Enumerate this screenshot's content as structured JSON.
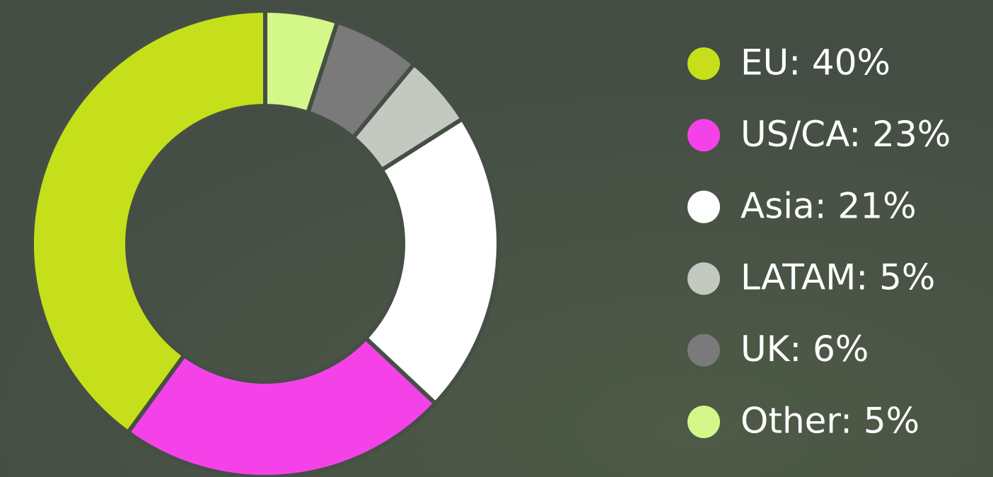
{
  "chart_data": {
    "type": "donut",
    "categories": [
      "EU: 40%",
      "US/CA: 23%",
      "Asia: 21%",
      "LATAM: 5%",
      "UK: 6%",
      "Other: 5%"
    ],
    "values": [
      40,
      23,
      21,
      5,
      6,
      5
    ],
    "colors": [
      "#c5e01a",
      "#f542e8",
      "#ffffff",
      "#c3c8c0",
      "#7a7a7a",
      "#d4f78a"
    ],
    "legend": "right"
  }
}
